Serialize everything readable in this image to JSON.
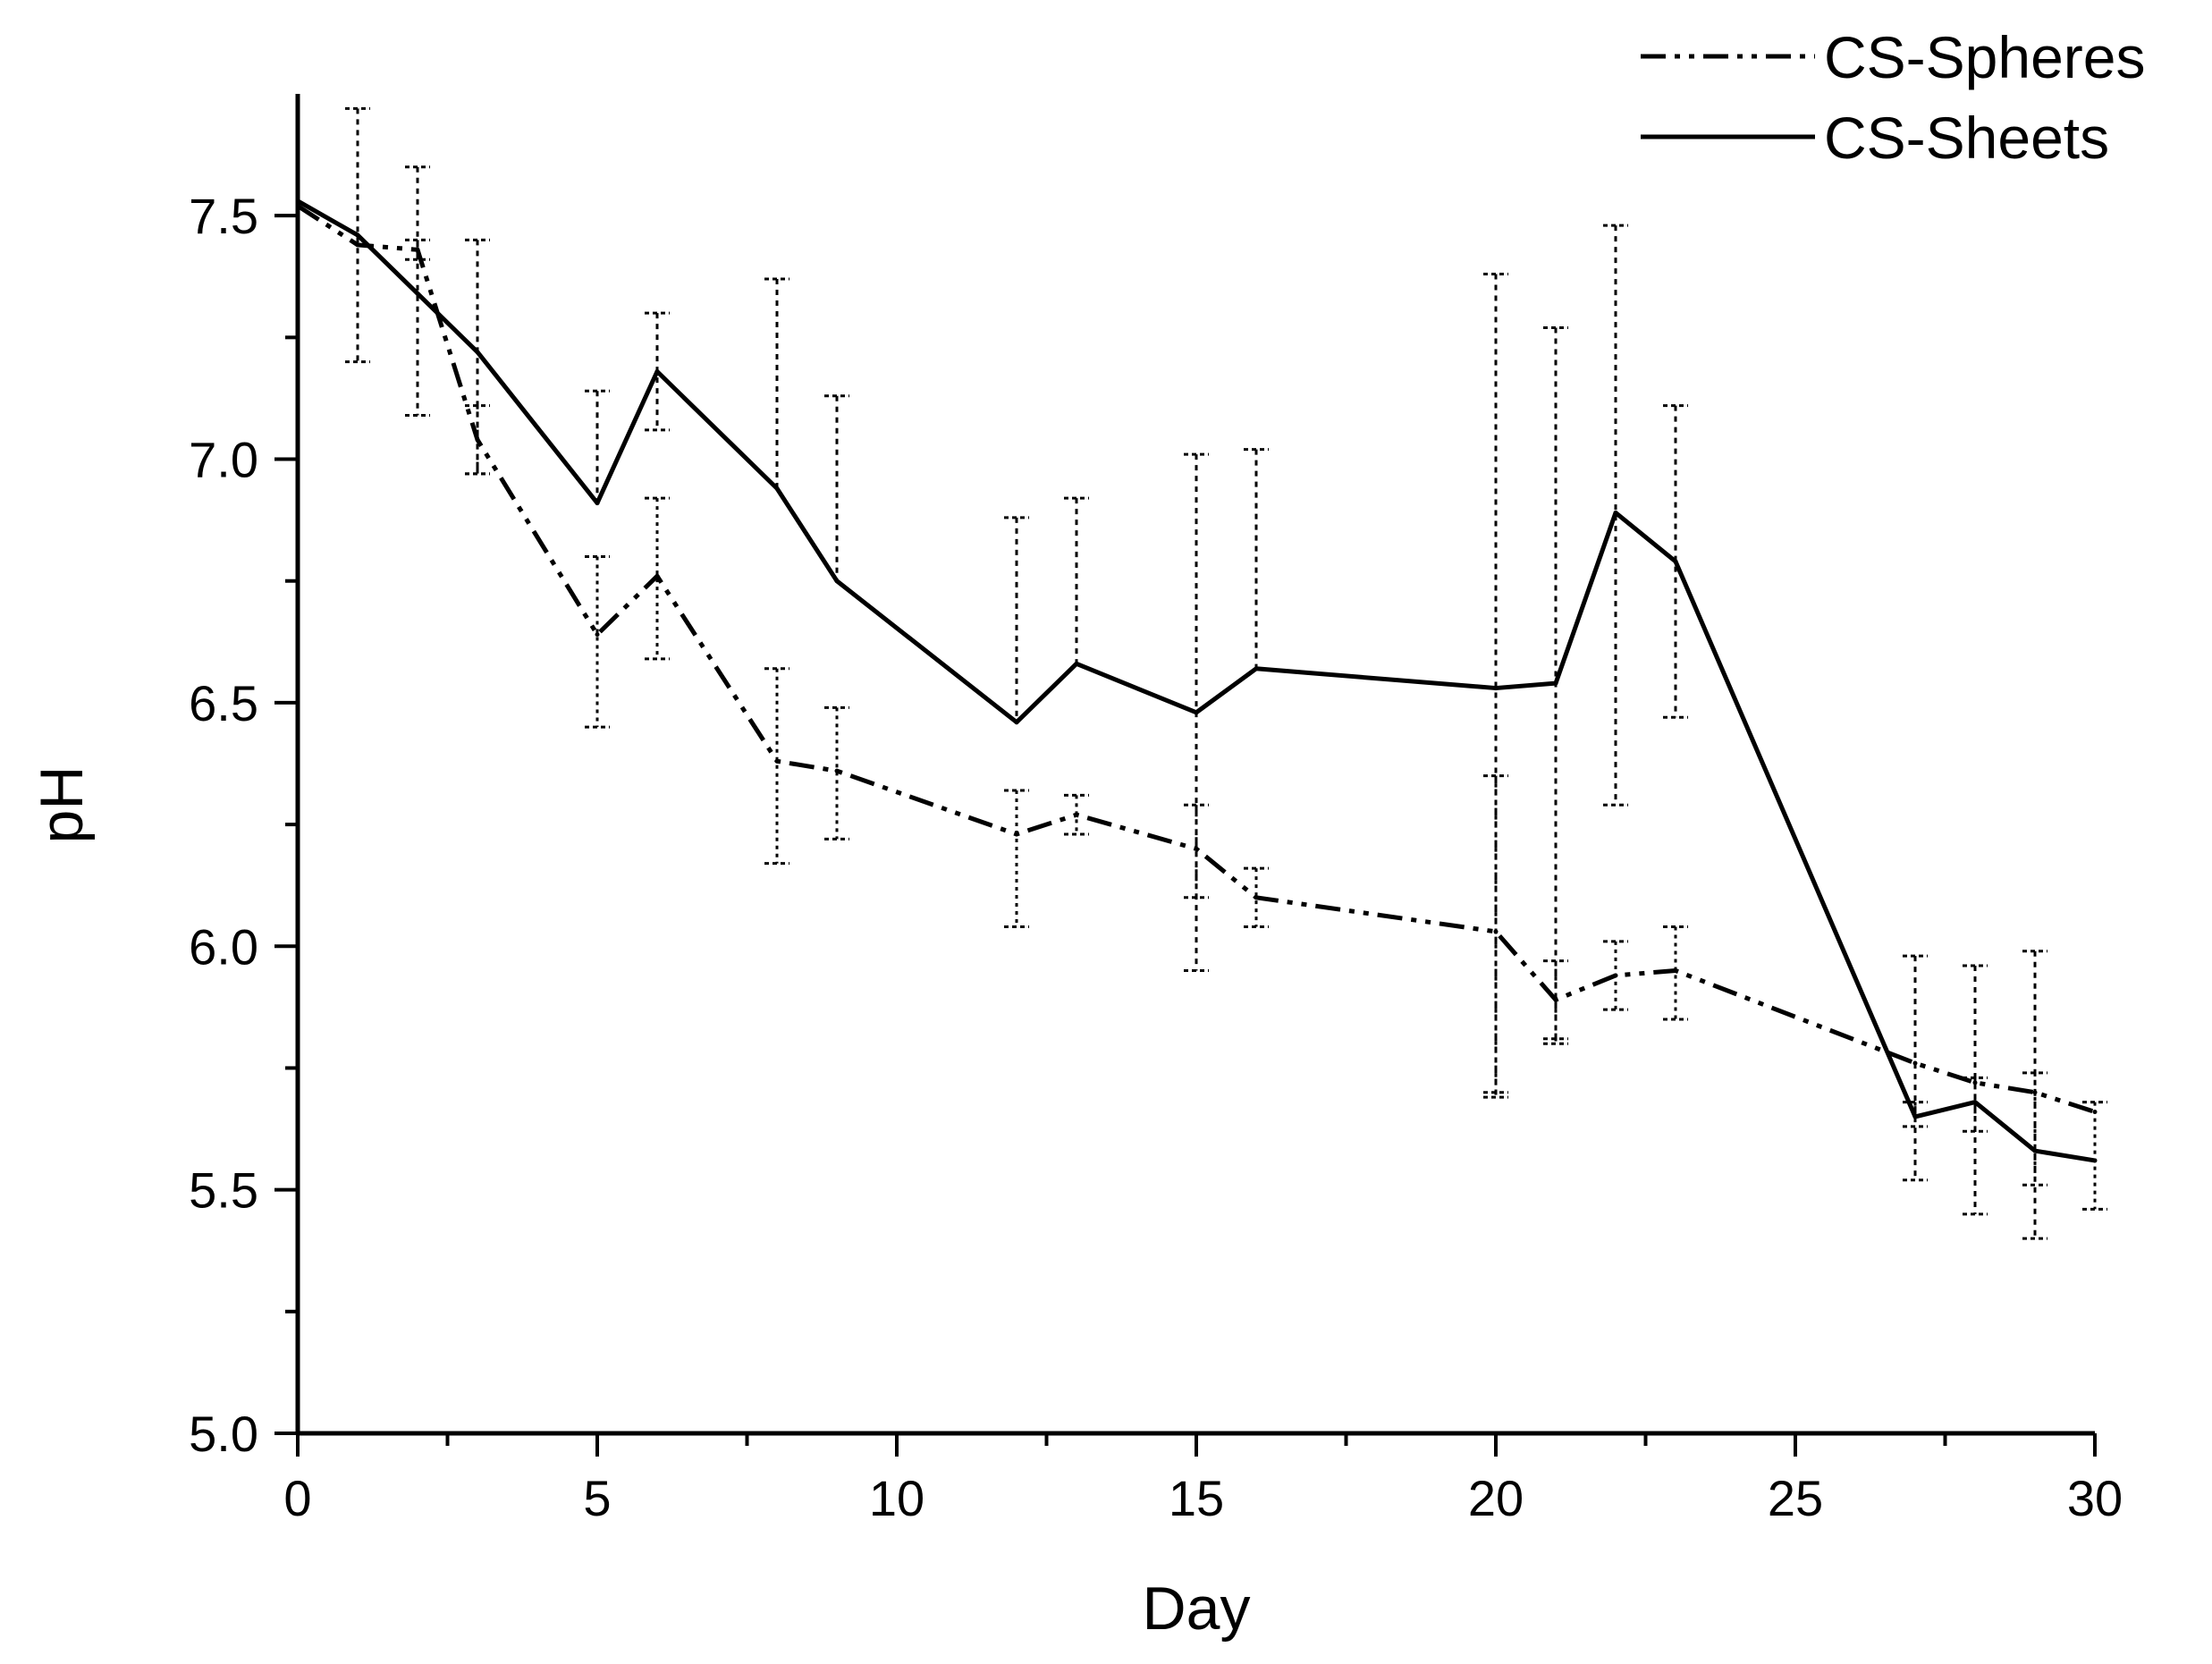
{
  "chart_data": {
    "type": "line",
    "title": "",
    "xlabel": "Day",
    "ylabel": "pH",
    "xlim": [
      0,
      30
    ],
    "ylim": [
      5.0,
      7.75
    ],
    "x_ticks": [
      "0",
      "5",
      "10",
      "15",
      "20",
      "25",
      "30"
    ],
    "y_ticks": [
      "5.0",
      "5.5",
      "6.0",
      "6.5",
      "7.0",
      "7.5"
    ],
    "legend_position": "top-right",
    "series": [
      {
        "name": "CS-Spheres",
        "style": "dash-dot",
        "x": [
          0,
          1,
          2,
          3,
          5,
          6,
          8,
          9,
          12,
          13,
          15,
          16,
          20,
          21,
          22,
          23,
          27,
          28,
          29,
          30
        ],
        "y": [
          7.52,
          7.44,
          7.43,
          7.04,
          6.64,
          6.76,
          6.38,
          6.36,
          6.23,
          6.27,
          6.2,
          6.1,
          6.03,
          5.89,
          5.94,
          5.95,
          5.76,
          5.72,
          5.7,
          5.66
        ],
        "err_low": [
          null,
          null,
          7.41,
          6.97,
          6.45,
          6.59,
          6.17,
          6.22,
          6.04,
          6.23,
          6.1,
          6.04,
          5.7,
          5.81,
          5.87,
          5.85,
          5.63,
          5.62,
          5.51,
          5.46
        ],
        "err_high": [
          null,
          null,
          7.45,
          7.11,
          6.8,
          6.92,
          6.57,
          6.49,
          6.32,
          6.31,
          6.29,
          6.16,
          6.35,
          5.97,
          6.01,
          6.04,
          5.68,
          5.73,
          5.74,
          5.68
        ]
      },
      {
        "name": "CS-Sheets",
        "style": "solid",
        "x": [
          0,
          1,
          2,
          3,
          5,
          6,
          8,
          9,
          12,
          13,
          15,
          16,
          20,
          21,
          22,
          23,
          27,
          28,
          29,
          30
        ],
        "y": [
          7.53,
          7.46,
          7.34,
          7.22,
          6.91,
          7.18,
          6.94,
          6.75,
          6.46,
          6.58,
          6.48,
          6.57,
          6.53,
          6.54,
          6.89,
          6.79,
          5.65,
          5.68,
          5.58,
          5.56
        ],
        "err_low": [
          null,
          7.2,
          7.09,
          6.97,
          null,
          7.06,
          null,
          null,
          null,
          null,
          5.95,
          null,
          5.69,
          5.8,
          6.29,
          6.47,
          5.52,
          5.45,
          5.4,
          null
        ],
        "err_high": [
          null,
          7.72,
          7.6,
          7.45,
          7.14,
          7.3,
          7.37,
          7.13,
          6.88,
          6.92,
          7.01,
          7.02,
          7.38,
          7.27,
          7.48,
          7.11,
          5.98,
          5.96,
          5.99,
          null
        ]
      }
    ]
  }
}
